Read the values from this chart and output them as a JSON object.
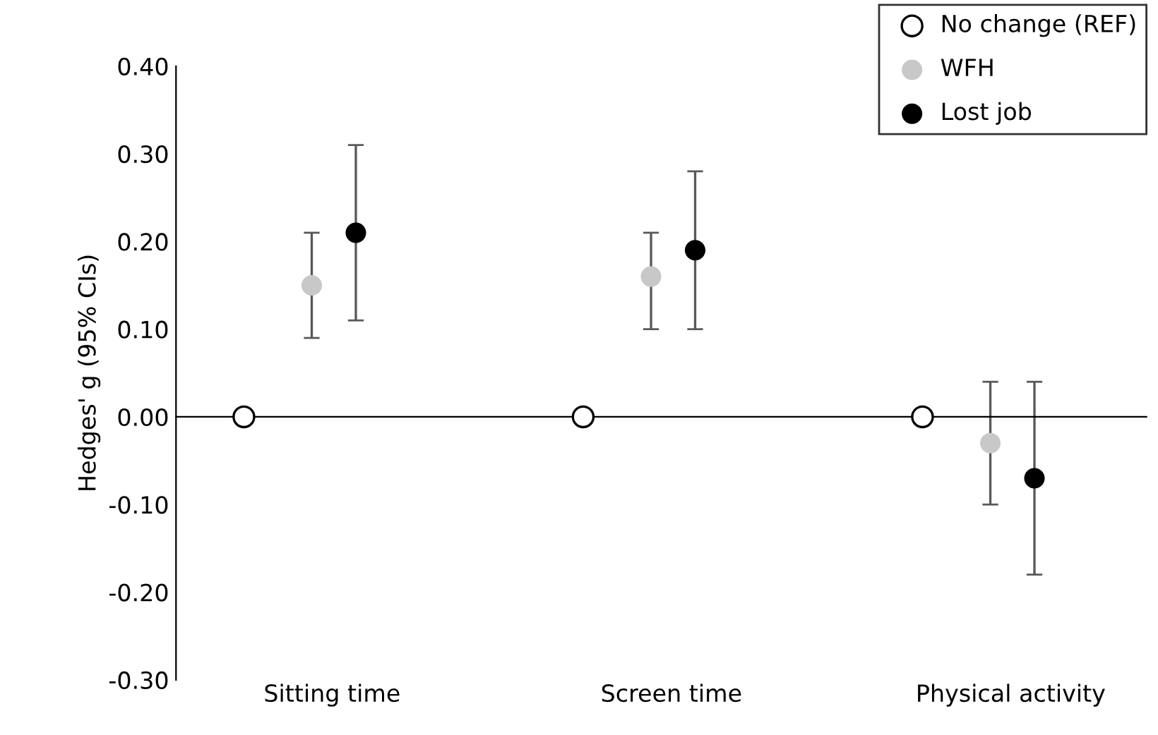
{
  "chart_data": {
    "type": "scatter",
    "ylabel": "Hedges' g (95% CIs)",
    "categories": [
      "Sitting time",
      "Screen time",
      "Physical activity"
    ],
    "series": [
      {
        "name": "No change (REF)",
        "color": "#ffffff",
        "values": [
          0.0,
          0.0,
          0.0
        ]
      },
      {
        "name": "WFH",
        "color": "#c8c8c8",
        "values": [
          0.15,
          0.16,
          -0.03
        ],
        "errors": [
          [
            0.09,
            0.21
          ],
          [
            0.1,
            0.21
          ],
          [
            -0.1,
            0.04
          ]
        ]
      },
      {
        "name": "Lost job",
        "color": "#000000",
        "values": [
          0.21,
          0.19,
          -0.07
        ],
        "errors": [
          [
            0.11,
            0.31
          ],
          [
            0.1,
            0.28
          ],
          [
            -0.18,
            0.04
          ]
        ]
      }
    ],
    "ylim": [
      -0.3,
      0.4
    ],
    "yticks": [
      {
        "value": -0.3,
        "label": "-0.30"
      },
      {
        "value": -0.2,
        "label": "-0.20"
      },
      {
        "value": -0.1,
        "label": "-0.10"
      },
      {
        "value": 0.0,
        "label": "0.00"
      },
      {
        "value": 0.1,
        "label": "0.10"
      },
      {
        "value": 0.2,
        "label": "0.20"
      },
      {
        "value": 0.3,
        "label": "0.30"
      },
      {
        "value": 0.4,
        "label": "0.40"
      }
    ],
    "marker": "circle",
    "legend": "top right"
  }
}
